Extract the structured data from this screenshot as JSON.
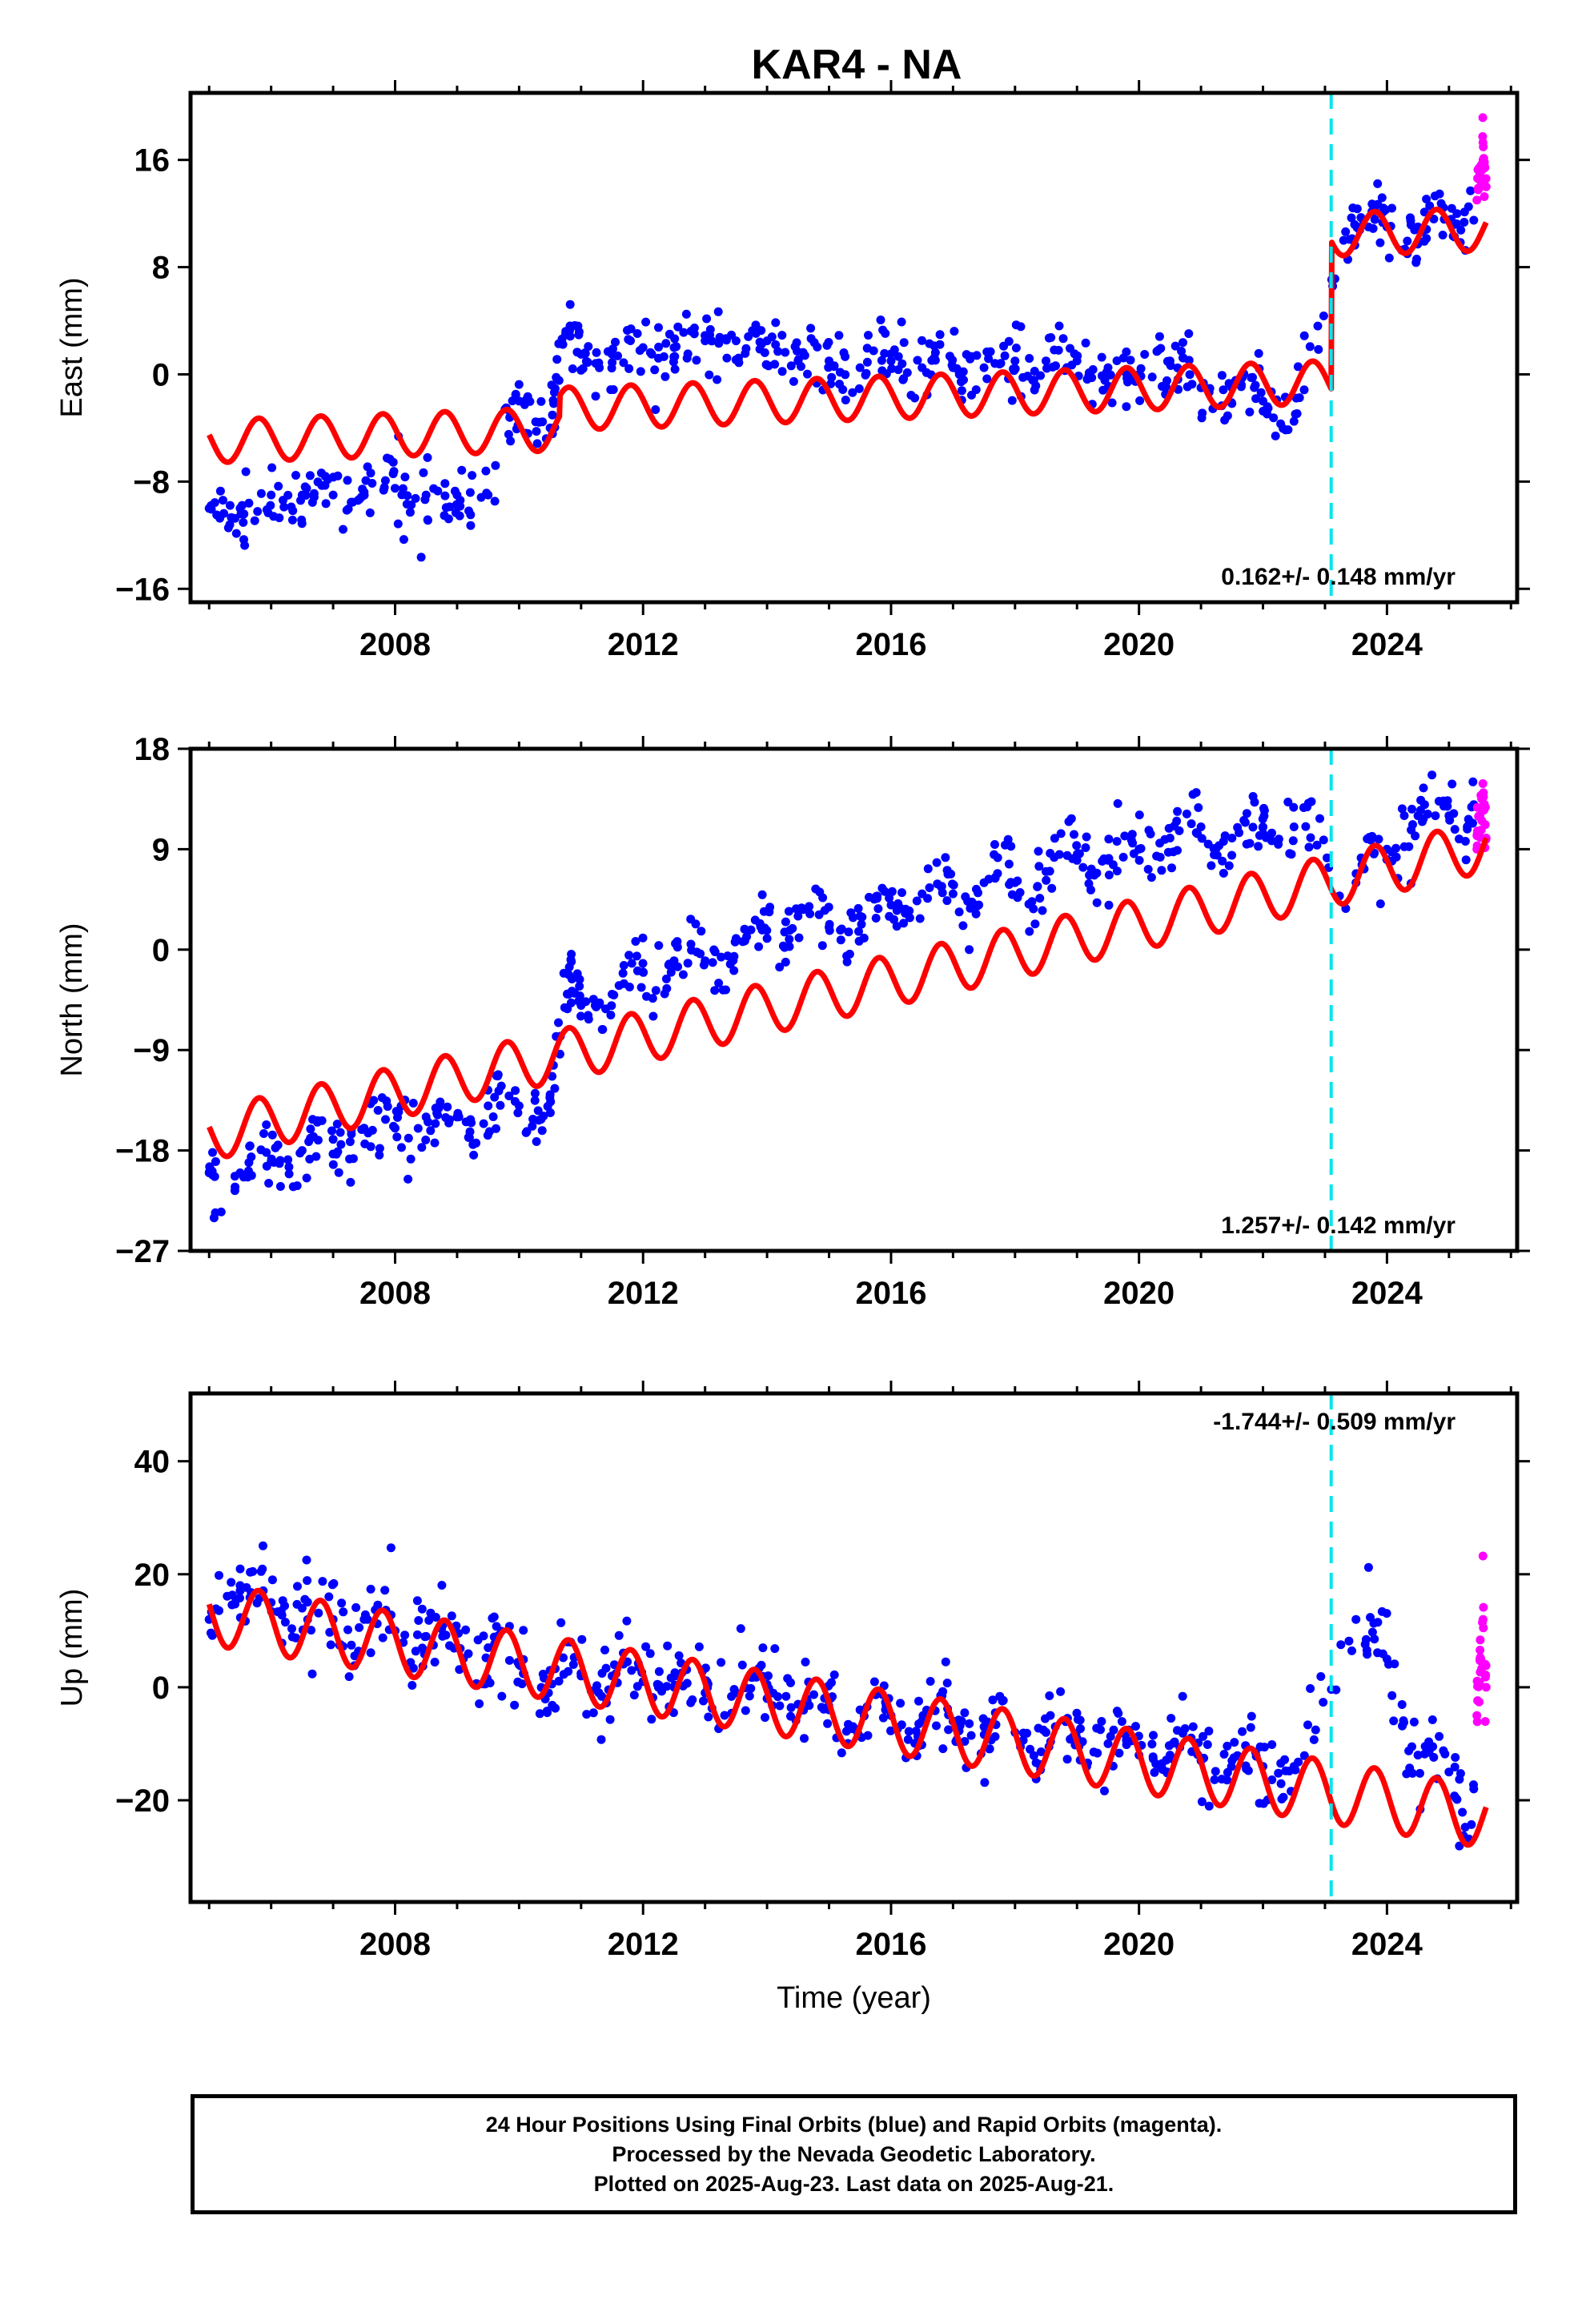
{
  "title": "KAR4 - NA",
  "chart_data": [
    {
      "type": "scatter",
      "panel": "east",
      "ylabel": "East (mm)",
      "xlabel": "",
      "xlim": [
        2004.7,
        2026.1
      ],
      "ylim": [
        -17,
        21
      ],
      "xticks": [
        2008,
        2012,
        2016,
        2020,
        2024
      ],
      "yticks": [
        -16,
        -8,
        0,
        8,
        16
      ],
      "rate_text": "0.162+/- 0.148 mm/yr",
      "rate_position": "bottom-right",
      "equipment_change_year": 2023.1,
      "series": [
        {
          "name": "Final Orbits",
          "color": "#0000ff",
          "kind": "points",
          "x": [
            2005.0,
            2005.5,
            2006.0,
            2006.5,
            2007.0,
            2007.5,
            2008.0,
            2008.5,
            2009.0,
            2009.5,
            2010.0,
            2010.5,
            2010.75,
            2011.0,
            2011.5,
            2012.0,
            2012.5,
            2013.0,
            2013.5,
            2014.0,
            2014.5,
            2015.0,
            2015.5,
            2016.0,
            2016.5,
            2017.0,
            2017.5,
            2018.0,
            2018.5,
            2019.0,
            2019.5,
            2020.0,
            2020.5,
            2021.0,
            2021.5,
            2022.0,
            2022.5,
            2023.3,
            2023.7,
            2024.0,
            2024.5,
            2025.0,
            2025.4
          ],
          "y": [
            -10,
            -10,
            -9,
            -9,
            -9,
            -9,
            -8.5,
            -9,
            -9,
            -9,
            -2,
            -4,
            3,
            1.5,
            1.5,
            2,
            2,
            2.5,
            2.5,
            2.5,
            1,
            1,
            0.5,
            1,
            0.5,
            0.5,
            0.5,
            1,
            1,
            1,
            0.5,
            0,
            1,
            -1,
            -1,
            -2,
            -3.5,
            10,
            11,
            11,
            11,
            11.5,
            11.5
          ]
        },
        {
          "name": "Rapid Orbits",
          "color": "#ff00ff",
          "kind": "points",
          "x": [
            2025.45,
            2025.5,
            2025.55,
            2025.6
          ],
          "y": [
            13,
            15,
            16,
            14
          ]
        },
        {
          "name": "Model",
          "color": "#ff0000",
          "kind": "seasonal",
          "start": 2005.0,
          "end": 2025.6,
          "offset": -5.0,
          "rate": 0.162,
          "amplitude": 1.6,
          "phase": 0.55,
          "steps": [
            {
              "year": 2010.65,
              "size": 1.5
            },
            {
              "year": 2023.1,
              "size": 11.0
            }
          ]
        }
      ]
    },
    {
      "type": "scatter",
      "panel": "north",
      "ylabel": "North (mm)",
      "xlabel": "",
      "xlim": [
        2004.7,
        2026.1
      ],
      "ylim": [
        -27,
        18
      ],
      "xticks": [
        2008,
        2012,
        2016,
        2020,
        2024
      ],
      "yticks": [
        -27,
        -18,
        -9,
        0,
        9,
        18
      ],
      "rate_text": "1.257+/- 0.142 mm/yr",
      "rate_position": "bottom-right",
      "equipment_change_year": 2023.1,
      "series": [
        {
          "name": "Final Orbits",
          "color": "#0000ff",
          "kind": "points",
          "x": [
            2005.0,
            2005.5,
            2006.0,
            2006.5,
            2007.0,
            2007.5,
            2008.0,
            2008.5,
            2009.0,
            2009.5,
            2010.0,
            2010.5,
            2010.8,
            2011.0,
            2011.5,
            2012.0,
            2012.5,
            2013.0,
            2013.5,
            2014.0,
            2014.5,
            2015.0,
            2015.5,
            2016.0,
            2016.5,
            2017.0,
            2017.5,
            2018.0,
            2018.5,
            2019.0,
            2019.5,
            2020.0,
            2020.5,
            2021.0,
            2021.5,
            2022.0,
            2022.5,
            2023.5,
            2024.0,
            2024.5,
            2025.0,
            2025.4
          ],
          "y": [
            -20,
            -20,
            -19,
            -18,
            -17,
            -16,
            -16,
            -15,
            -15,
            -14,
            -14,
            -13,
            -4,
            -5,
            -4,
            -2,
            -1,
            -1,
            1,
            1,
            3,
            2,
            3,
            4,
            5,
            5,
            6,
            6,
            7,
            8,
            8,
            9,
            10,
            11,
            10,
            11,
            11,
            6,
            9,
            12,
            12,
            13
          ]
        },
        {
          "name": "Rapid Orbits",
          "color": "#ff00ff",
          "kind": "points",
          "x": [
            2025.45,
            2025.5,
            2025.55,
            2025.6
          ],
          "y": [
            9,
            12,
            14,
            10
          ]
        },
        {
          "name": "Model",
          "color": "#ff0000",
          "kind": "seasonal",
          "start": 2005.0,
          "end": 2025.6,
          "offset": -16.6,
          "rate": 1.257,
          "amplitude": 2.3,
          "phase": 0.55,
          "steps": [
            {
              "year": 2010.65,
              "size": 0.0
            }
          ]
        }
      ]
    },
    {
      "type": "scatter",
      "panel": "up",
      "ylabel": "Up (mm)",
      "xlabel": "Time (year)",
      "xlim": [
        2004.7,
        2026.1
      ],
      "ylim": [
        -38,
        52
      ],
      "xticks": [
        2008,
        2012,
        2016,
        2020,
        2024
      ],
      "yticks": [
        -20,
        0,
        20,
        40
      ],
      "rate_text": "-1.744+/- 0.509 mm/yr",
      "rate_position": "top-right",
      "equipment_change_year": 2023.1,
      "series": [
        {
          "name": "Final Orbits",
          "color": "#0000ff",
          "kind": "points",
          "x": [
            2005.0,
            2005.5,
            2006.0,
            2006.5,
            2007.0,
            2007.5,
            2008.0,
            2008.5,
            2009.0,
            2009.5,
            2010.0,
            2010.5,
            2011.0,
            2011.5,
            2012.0,
            2012.5,
            2013.0,
            2013.5,
            2014.0,
            2014.5,
            2015.0,
            2015.5,
            2016.0,
            2016.5,
            2017.0,
            2017.5,
            2018.0,
            2018.5,
            2019.0,
            2019.5,
            2020.0,
            2020.5,
            2021.0,
            2021.5,
            2022.0,
            2022.5,
            2023.5,
            2024.0,
            2024.5,
            2025.0,
            2025.4
          ],
          "y": [
            12,
            18,
            15,
            14,
            12,
            12,
            10,
            9,
            7,
            7,
            4,
            3,
            2,
            2,
            1,
            0,
            -1,
            -1,
            -2,
            -3,
            -4,
            -4,
            -5,
            -6,
            -6,
            -7,
            -8,
            -8,
            -9,
            -10,
            -12,
            -12,
            -13,
            -13,
            -14,
            -14,
            12,
            5,
            -12,
            -15,
            -18
          ]
        },
        {
          "name": "Rapid Orbits",
          "color": "#ff00ff",
          "kind": "points",
          "x": [
            2025.45,
            2025.5,
            2025.55,
            2025.6
          ],
          "y": [
            -5,
            5,
            12,
            0
          ]
        },
        {
          "name": "Model",
          "color": "#ff0000",
          "kind": "seasonal",
          "start": 2005.0,
          "end": 2025.6,
          "offset": 13.0,
          "rate": -1.744,
          "amplitude": 5.5,
          "phase": 0.55,
          "steps": []
        }
      ]
    }
  ],
  "footer": {
    "line1": "24 Hour Positions Using Final Orbits (blue) and Rapid Orbits (magenta).",
    "line2": "Processed by the Nevada Geodetic Laboratory.",
    "line3": "Plotted on 2025-Aug-23. Last data on 2025-Aug-21."
  }
}
